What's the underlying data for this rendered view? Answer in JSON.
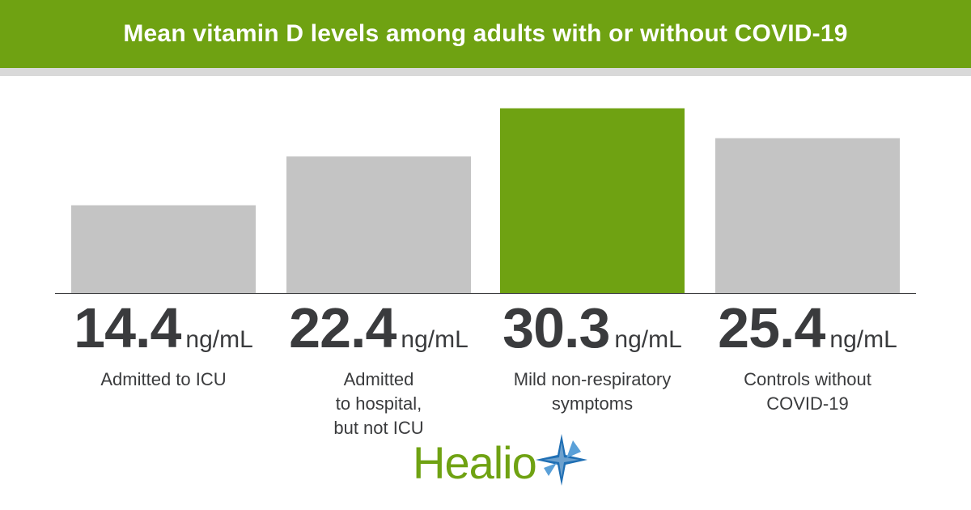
{
  "header": {
    "title": "Mean vitamin D levels among adults with or without COVID-19"
  },
  "colors": {
    "accent": "#6fa212",
    "bar": "#c4c4c4",
    "highlight": "#6fa212",
    "text": "#3a3b3d",
    "star": "#1f6fb4"
  },
  "chart_data": {
    "type": "bar",
    "categories": [
      "Admitted to ICU",
      "Admitted to hospital, but not ICU",
      "Mild non-respiratory symptoms",
      "Controls without COVID-19"
    ],
    "values": [
      14.4,
      22.4,
      30.3,
      25.4
    ],
    "value_labels": [
      "14.4",
      "22.4",
      "30.3",
      "25.4"
    ],
    "unit": "ng/mL",
    "highlight_index": 2,
    "ylim": [
      0,
      32
    ],
    "grid": false,
    "legend": "none"
  },
  "labels": [
    {
      "value": "14.4",
      "unit": "ng/mL",
      "lines": [
        "Admitted to ICU"
      ]
    },
    {
      "value": "22.4",
      "unit": "ng/mL",
      "lines": [
        "Admitted",
        "to hospital,",
        "but not ICU"
      ]
    },
    {
      "value": "30.3",
      "unit": "ng/mL",
      "lines": [
        "Mild non-respiratory",
        "symptoms"
      ]
    },
    {
      "value": "25.4",
      "unit": "ng/mL",
      "lines": [
        "Controls without",
        "COVID-19"
      ]
    }
  ],
  "logo": {
    "text": "Healio",
    "icon": "star-icon"
  }
}
